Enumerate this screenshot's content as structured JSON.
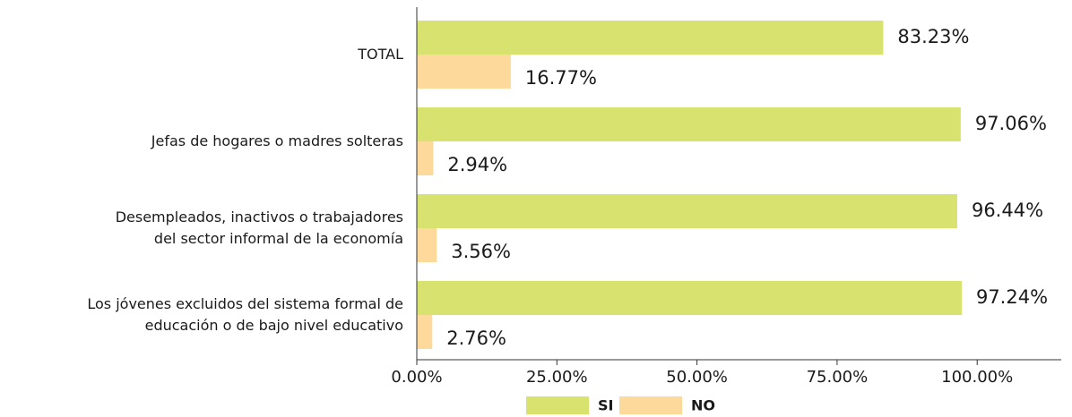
{
  "chart_data": {
    "type": "barh",
    "categories": [
      "TOTAL",
      "Jefas de hogares o madres solteras",
      "Desempleados, inactivos o trabajadores\ndel sector informal de la economía",
      "Los jóvenes excluidos del sistema formal de\neducación o de bajo nivel educativo"
    ],
    "series": [
      {
        "name": "SI",
        "color": "#d8e26e",
        "values": [
          83.23,
          97.06,
          96.44,
          97.24
        ],
        "value_labels": [
          "83.23%",
          "97.06%",
          "96.44%",
          "97.24%"
        ]
      },
      {
        "name": "NO",
        "color": "#fdd99b",
        "values": [
          16.77,
          2.94,
          3.56,
          2.76
        ],
        "value_labels": [
          "16.77%",
          "2.94%",
          "3.56%",
          "2.76%"
        ]
      }
    ],
    "xlim": [
      0,
      115
    ],
    "xticks": [
      {
        "value": 0,
        "label": "0.00%"
      },
      {
        "value": 25,
        "label": "25.00%"
      },
      {
        "value": 50,
        "label": "50.00%"
      },
      {
        "value": 75,
        "label": "75.00%"
      },
      {
        "value": 100,
        "label": "100.00%"
      }
    ],
    "grid": false,
    "legend": "bottom"
  }
}
